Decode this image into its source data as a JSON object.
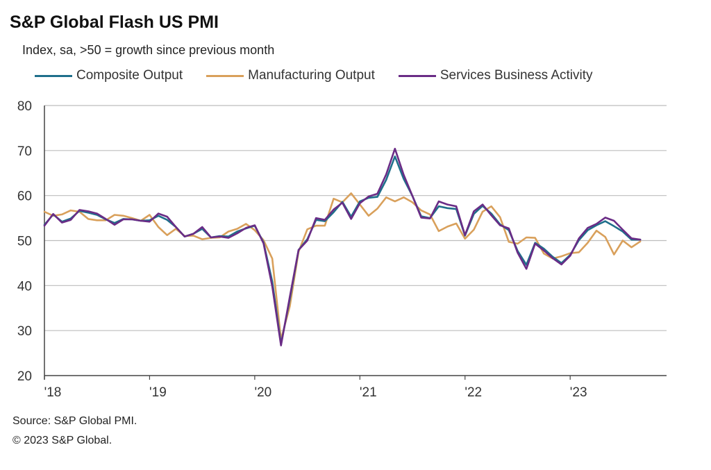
{
  "header": {
    "title": "S&P Global Flash US PMI",
    "subtitle": "Index, sa, >50 = growth since previous month"
  },
  "footer": {
    "source": "Source: S&P Global PMI.",
    "copyright": "© 2023 S&P Global."
  },
  "chart_data": {
    "type": "line",
    "title": "S&P Global Flash US PMI",
    "subtitle": "Index, sa, >50 = growth since previous month",
    "ylim": [
      20,
      80
    ],
    "yticks": [
      20,
      30,
      40,
      50,
      60,
      70,
      80
    ],
    "xticks": [
      "'18",
      "'19",
      "'20",
      "'21",
      "'22",
      "'23"
    ],
    "x_start": "2018-01",
    "grid": true,
    "legend_position": "top",
    "series": [
      {
        "name": "Composite Output",
        "color": "#1f6f8b",
        "values": [
          53.5,
          55.8,
          54.2,
          54.9,
          56.6,
          56.2,
          55.7,
          54.7,
          53.9,
          54.8,
          54.7,
          54.4,
          54.5,
          55.5,
          54.6,
          53.0,
          50.9,
          51.5,
          52.6,
          50.7,
          51.0,
          50.9,
          52.0,
          52.7,
          53.3,
          49.6,
          40.9,
          27.0,
          37.0,
          47.9,
          50.3,
          54.6,
          54.3,
          56.3,
          58.6,
          55.3,
          58.7,
          59.5,
          59.7,
          63.5,
          68.7,
          63.7,
          59.9,
          55.4,
          55.0,
          57.6,
          57.2,
          57.0,
          51.1,
          55.9,
          57.7,
          56.0,
          53.6,
          52.3,
          47.7,
          44.6,
          49.5,
          48.2,
          46.4,
          45.0,
          46.8,
          50.1,
          52.3,
          53.4,
          54.3,
          53.2,
          52.0,
          50.2,
          50.2
        ]
      },
      {
        "name": "Manufacturing Output",
        "color": "#d9a05b",
        "values": [
          56.4,
          55.5,
          55.8,
          56.7,
          56.4,
          54.8,
          54.5,
          54.5,
          55.7,
          55.5,
          55.0,
          54.4,
          55.7,
          53.0,
          51.2,
          52.6,
          51.0,
          51.1,
          50.3,
          50.6,
          50.7,
          52.0,
          52.6,
          53.7,
          52.3,
          50.1,
          46.0,
          28.0,
          35.4,
          47.5,
          52.5,
          53.3,
          53.3,
          59.3,
          58.5,
          60.5,
          58.0,
          55.5,
          57.1,
          59.6,
          58.7,
          59.6,
          58.5,
          56.7,
          55.8,
          52.1,
          53.1,
          53.8,
          50.4,
          52.4,
          56.4,
          57.6,
          55.2,
          49.7,
          49.3,
          50.7,
          50.6,
          47.1,
          46.0,
          46.5,
          47.2,
          47.4,
          49.5,
          52.2,
          50.8,
          46.9,
          50.0,
          48.5,
          49.8
        ]
      },
      {
        "name": "Services Business Activity",
        "color": "#6a2c86",
        "values": [
          53.3,
          55.9,
          54.0,
          54.6,
          56.8,
          56.5,
          56.0,
          54.8,
          53.5,
          54.7,
          54.7,
          54.4,
          54.2,
          56.0,
          55.3,
          53.0,
          50.9,
          51.5,
          53.0,
          50.7,
          50.9,
          50.6,
          51.6,
          52.8,
          53.4,
          49.4,
          39.8,
          26.7,
          37.5,
          47.9,
          50.0,
          55.0,
          54.6,
          56.9,
          58.4,
          54.8,
          58.3,
          59.8,
          60.4,
          64.7,
          70.4,
          64.6,
          59.9,
          55.1,
          54.9,
          58.7,
          58.0,
          57.6,
          51.2,
          56.5,
          58.0,
          55.6,
          53.4,
          52.7,
          47.3,
          43.7,
          49.3,
          47.8,
          46.1,
          44.7,
          46.6,
          50.5,
          52.8,
          53.7,
          55.1,
          54.4,
          52.4,
          50.5,
          50.2
        ]
      }
    ]
  }
}
